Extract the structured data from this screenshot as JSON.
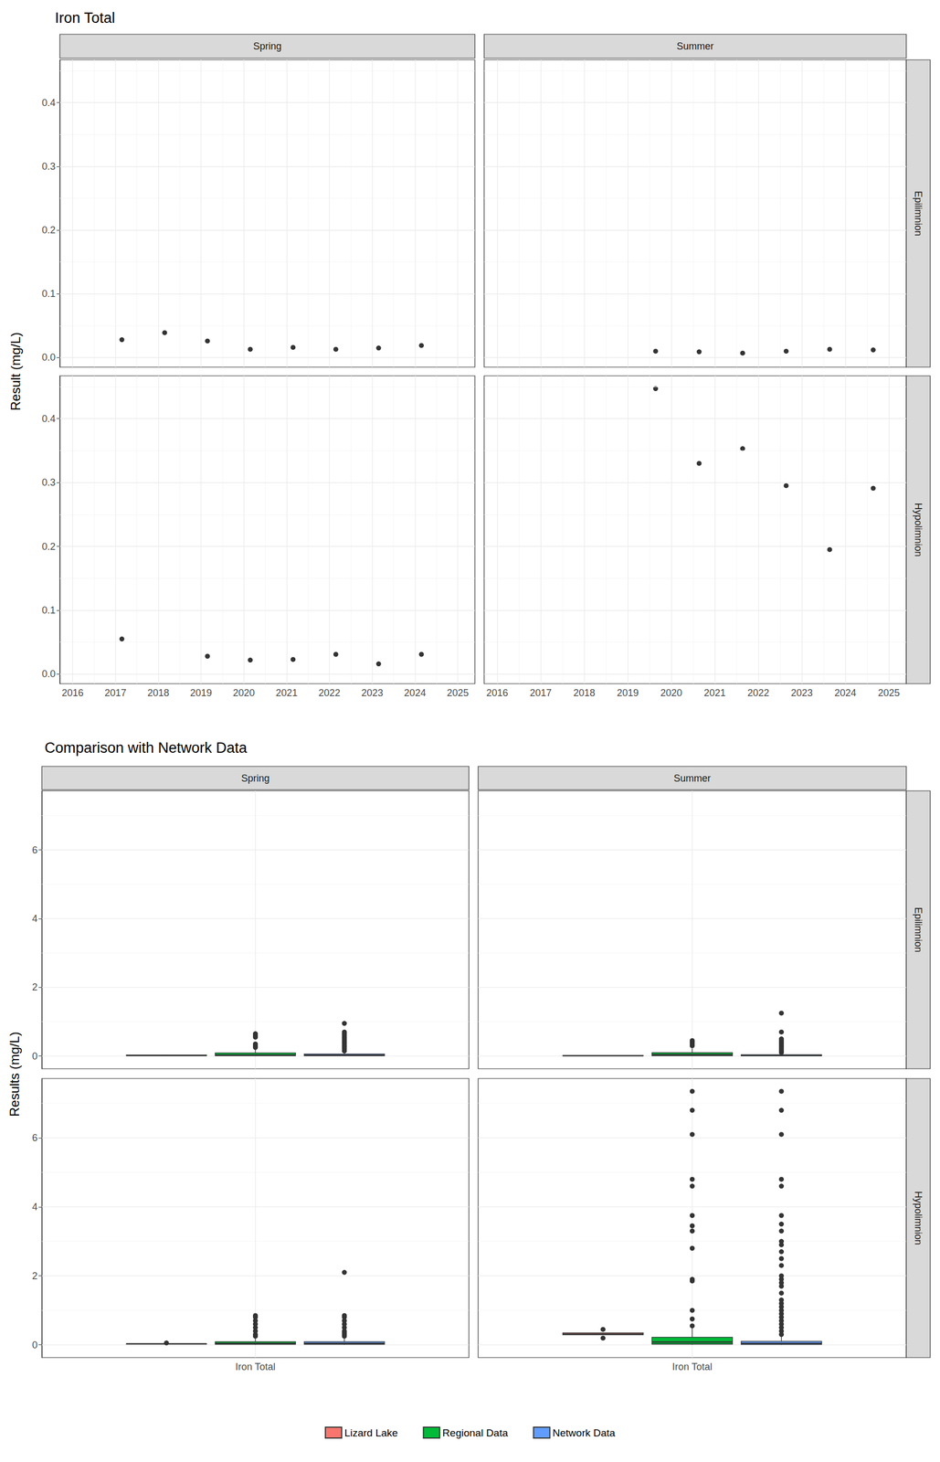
{
  "chart_data": [
    {
      "type": "scatter",
      "title": "Iron Total",
      "y_label": "Result (mg/L)",
      "columns": [
        "Spring",
        "Summer"
      ],
      "rows": [
        "Epilimnion",
        "Hypolimnion"
      ],
      "xlim": [
        2015.7,
        2025.4
      ],
      "xticks": [
        2016,
        2017,
        2018,
        2019,
        2020,
        2021,
        2022,
        2023,
        2024,
        2025
      ],
      "ylim": [
        -0.015,
        0.467
      ],
      "yticks": [
        {
          "value": 0,
          "label": "0.0"
        },
        0.1,
        0.2,
        0.3,
        0.4
      ],
      "grid": true,
      "color": "#000000",
      "marker": "circle",
      "panels": [
        {
          "column": "Spring",
          "row": "Epilimnion",
          "x": [
            2017.15,
            2018.15,
            2019.15,
            2020.15,
            2021.15,
            2022.15,
            2023.15,
            2024.15
          ],
          "values": [
            0.028,
            0.039,
            0.026,
            0.013,
            0.016,
            0.013,
            0.015,
            0.019
          ]
        },
        {
          "column": "Summer",
          "row": "Epilimnion",
          "x": [
            2019.64,
            2020.64,
            2021.64,
            2022.64,
            2023.64,
            2024.64
          ],
          "values": [
            0.01,
            0.009,
            0.007,
            0.01,
            0.013,
            0.012
          ]
        },
        {
          "column": "Spring",
          "row": "Hypolimnion",
          "x": [
            2017.15,
            2019.15,
            2020.15,
            2021.15,
            2022.15,
            2023.15,
            2024.15
          ],
          "values": [
            0.055,
            0.028,
            0.022,
            0.023,
            0.031,
            0.016,
            0.031
          ]
        },
        {
          "column": "Summer",
          "row": "Hypolimnion",
          "x": [
            2019.64,
            2020.64,
            2021.64,
            2022.64,
            2023.64,
            2024.64
          ],
          "values": [
            0.447,
            0.33,
            0.353,
            0.295,
            0.195,
            0.291
          ]
        }
      ]
    },
    {
      "type": "boxplot",
      "title": "Comparison with Network Data",
      "y_label": "Results (mg/L)",
      "columns": [
        "Spring",
        "Summer"
      ],
      "rows": [
        "Epilimnion",
        "Hypolimnion"
      ],
      "categories": [
        "Iron Total"
      ],
      "ylim": [
        -0.37,
        7.72
      ],
      "yticks": [
        0,
        2,
        4,
        6
      ],
      "grid": true,
      "legend": "bottom",
      "series": [
        {
          "name": "Lizard Lake",
          "color": "#F8766D"
        },
        {
          "name": "Regional Data",
          "color": "#00BA38"
        },
        {
          "name": "Network Data",
          "color": "#619CFF"
        }
      ],
      "panels": [
        {
          "column": "Spring",
          "row": "Epilimnion",
          "boxes": [
            {
              "min": 0.013,
              "q1": 0.014,
              "median": 0.017,
              "q3": 0.027,
              "max": 0.039,
              "outliers": []
            },
            {
              "min": 0,
              "q1": 0.01,
              "median": 0.03,
              "q3": 0.09,
              "max": 0.2,
              "outliers": [
                0.25,
                0.3,
                0.35,
                0.55,
                0.6,
                0.65
              ]
            },
            {
              "min": 0,
              "q1": 0.01,
              "median": 0.025,
              "q3": 0.06,
              "max": 0.13,
              "outliers": [
                0.15,
                0.2,
                0.25,
                0.3,
                0.35,
                0.4,
                0.45,
                0.5,
                0.55,
                0.6,
                0.65,
                0.7,
                0.95
              ]
            }
          ]
        },
        {
          "column": "Summer",
          "row": "Epilimnion",
          "boxes": [
            {
              "min": 0.007,
              "q1": 0.009,
              "median": 0.01,
              "q3": 0.012,
              "max": 0.013,
              "outliers": []
            },
            {
              "min": 0,
              "q1": 0.01,
              "median": 0.04,
              "q3": 0.1,
              "max": 0.22,
              "outliers": [
                0.3,
                0.35,
                0.4,
                0.45
              ]
            },
            {
              "min": 0,
              "q1": 0.005,
              "median": 0.015,
              "q3": 0.04,
              "max": 0.09,
              "outliers": [
                0.1,
                0.15,
                0.2,
                0.25,
                0.3,
                0.35,
                0.4,
                0.45,
                0.5,
                0.7,
                1.25
              ]
            }
          ]
        },
        {
          "column": "Spring",
          "row": "Hypolimnion",
          "boxes": [
            {
              "min": 0.016,
              "q1": 0.022,
              "median": 0.028,
              "q3": 0.031,
              "max": 0.031,
              "outliers": [
                0.055
              ]
            },
            {
              "min": 0,
              "q1": 0.015,
              "median": 0.04,
              "q3": 0.09,
              "max": 0.2,
              "outliers": [
                0.25,
                0.3,
                0.4,
                0.5,
                0.6,
                0.7,
                0.8,
                0.85
              ]
            },
            {
              "min": 0,
              "q1": 0.015,
              "median": 0.04,
              "q3": 0.09,
              "max": 0.2,
              "outliers": [
                0.25,
                0.3,
                0.35,
                0.4,
                0.5,
                0.6,
                0.7,
                0.8,
                0.85,
                2.1
              ]
            }
          ]
        },
        {
          "column": "Summer",
          "row": "Hypolimnion",
          "boxes": [
            {
              "min": 0.291,
              "q1": 0.292,
              "median": 0.3125,
              "q3": 0.347,
              "max": 0.353,
              "outliers": [
                0.195,
                0.447
              ]
            },
            {
              "min": 0,
              "q1": 0.02,
              "median": 0.08,
              "q3": 0.22,
              "max": 0.5,
              "outliers": [
                0.55,
                0.75,
                1.0,
                1.85,
                1.9,
                2.8,
                3.3,
                3.45,
                3.75,
                4.6,
                4.8,
                6.1,
                6.8,
                7.35
              ]
            },
            {
              "min": 0,
              "q1": 0.01,
              "median": 0.04,
              "q3": 0.1,
              "max": 0.24,
              "outliers": [
                0.3,
                0.4,
                0.5,
                0.6,
                0.7,
                0.8,
                0.9,
                1.0,
                1.1,
                1.2,
                1.3,
                1.5,
                1.7,
                1.8,
                1.9,
                2.0,
                2.3,
                2.5,
                2.7,
                2.9,
                3.0,
                3.3,
                3.5,
                3.75,
                4.6,
                4.8,
                6.1,
                6.8,
                7.35
              ]
            }
          ]
        }
      ]
    }
  ]
}
